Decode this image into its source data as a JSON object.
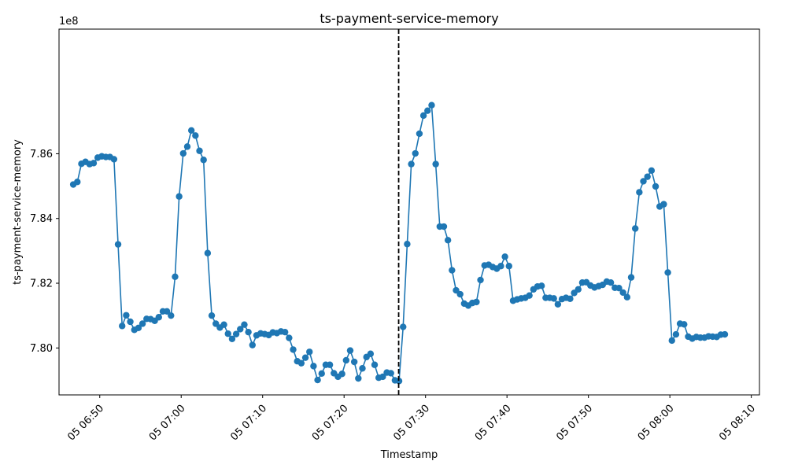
{
  "chart_data": {
    "type": "line",
    "title": "ts-payment-service-memory",
    "xlabel": "Timestamp",
    "ylabel": "ts-payment-service-memory",
    "y_offset_label": "1e8",
    "y_scale": 100000000,
    "xlim": [
      "05 06:45",
      "05 08:11"
    ],
    "ylim": [
      7.7855,
      7.8985
    ],
    "grid": false,
    "legend": "none",
    "line_color": "#1f77b4",
    "marker": "circle",
    "x_ticks": [
      {
        "minute": 50,
        "label": "05 06:50"
      },
      {
        "minute": 60,
        "label": "05 07:00"
      },
      {
        "minute": 70,
        "label": "05 07:10"
      },
      {
        "minute": 80,
        "label": "05 07:20"
      },
      {
        "minute": 90,
        "label": "05 07:30"
      },
      {
        "minute": 100,
        "label": "05 07:40"
      },
      {
        "minute": 110,
        "label": "05 07:50"
      },
      {
        "minute": 120,
        "label": "05 08:00"
      },
      {
        "minute": 130,
        "label": "05 08:10"
      }
    ],
    "y_ticks": [
      {
        "value": 7.8,
        "label": "7.80"
      },
      {
        "value": 7.82,
        "label": "7.82"
      },
      {
        "value": 7.84,
        "label": "7.84"
      },
      {
        "value": 7.86,
        "label": "7.86"
      }
    ],
    "vline": {
      "time": "05 07:26:42",
      "style": "dashed",
      "color": "#000000"
    },
    "series": [
      {
        "x": [
          "05 06:46:45",
          "05 06:47:15",
          "05 06:47:45",
          "05 06:48:15",
          "05 06:48:45",
          "05 06:49:15",
          "05 06:49:45",
          "05 06:50:15",
          "05 06:50:45",
          "05 06:51:15",
          "05 06:51:45",
          "05 06:52:15",
          "05 06:52:45",
          "05 06:53:15",
          "05 06:53:45",
          "05 06:54:15",
          "05 06:54:45",
          "05 06:55:15",
          "05 06:55:45",
          "05 06:56:15",
          "05 06:56:45",
          "05 06:57:15",
          "05 06:57:45",
          "05 06:58:15",
          "05 06:58:45",
          "05 06:59:15",
          "05 06:59:45",
          "05 07:00:15",
          "05 07:00:45",
          "05 07:01:15",
          "05 07:01:45",
          "05 07:02:15",
          "05 07:02:45",
          "05 07:03:15",
          "05 07:03:45",
          "05 07:04:15",
          "05 07:04:45",
          "05 07:05:15",
          "05 07:05:45",
          "05 07:06:15",
          "05 07:06:45",
          "05 07:07:15",
          "05 07:07:45",
          "05 07:08:15",
          "05 07:08:45",
          "05 07:09:15",
          "05 07:09:45",
          "05 07:10:15",
          "05 07:10:45",
          "05 07:11:15",
          "05 07:11:45",
          "05 07:12:15",
          "05 07:12:45",
          "05 07:13:15",
          "05 07:13:45",
          "05 07:14:15",
          "05 07:14:45",
          "05 07:15:15",
          "05 07:15:45",
          "05 07:16:15",
          "05 07:16:45",
          "05 07:17:15",
          "05 07:17:45",
          "05 07:18:15",
          "05 07:18:45",
          "05 07:19:15",
          "05 07:19:45",
          "05 07:20:15",
          "05 07:20:45",
          "05 07:21:15",
          "05 07:21:45",
          "05 07:22:15",
          "05 07:22:45",
          "05 07:23:15",
          "05 07:23:45",
          "05 07:24:15",
          "05 07:24:45",
          "05 07:25:15",
          "05 07:25:45",
          "05 07:26:15",
          "05 07:26:45",
          "05 07:27:15",
          "05 07:27:45",
          "05 07:28:15",
          "05 07:28:45",
          "05 07:29:15",
          "05 07:29:45",
          "05 07:30:15",
          "05 07:30:45",
          "05 07:31:15",
          "05 07:31:45",
          "05 07:32:15",
          "05 07:32:45",
          "05 07:33:15",
          "05 07:33:45",
          "05 07:34:15",
          "05 07:34:45",
          "05 07:35:15",
          "05 07:35:45",
          "05 07:36:15",
          "05 07:36:45",
          "05 07:37:15",
          "05 07:37:45",
          "05 07:38:15",
          "05 07:38:45",
          "05 07:39:15",
          "05 07:39:45",
          "05 07:40:15",
          "05 07:40:45",
          "05 07:41:15",
          "05 07:41:45",
          "05 07:42:15",
          "05 07:42:45",
          "05 07:43:15",
          "05 07:43:45",
          "05 07:44:15",
          "05 07:44:45",
          "05 07:45:15",
          "05 07:45:45",
          "05 07:46:15",
          "05 07:46:45",
          "05 07:47:15",
          "05 07:47:45",
          "05 07:48:15",
          "05 07:48:45",
          "05 07:49:15",
          "05 07:49:45",
          "05 07:50:15",
          "05 07:50:45",
          "05 07:51:15",
          "05 07:51:45",
          "05 07:52:15",
          "05 07:52:45",
          "05 07:53:15",
          "05 07:53:45",
          "05 07:54:15",
          "05 07:54:45",
          "05 07:55:15",
          "05 07:55:45",
          "05 07:56:15",
          "05 07:56:45",
          "05 07:57:15",
          "05 07:57:45",
          "05 07:58:15",
          "05 07:58:45",
          "05 07:59:15",
          "05 07:59:45",
          "05 08:00:15",
          "05 08:00:45",
          "05 08:01:15",
          "05 08:01:45",
          "05 08:02:15",
          "05 08:02:45",
          "05 08:03:15",
          "05 08:03:45",
          "05 08:04:15",
          "05 08:04:45",
          "05 08:05:15",
          "05 08:05:45",
          "05 08:06:15",
          "05 08:06:45"
        ],
        "values": [
          7.8505,
          7.8513,
          7.8569,
          7.8575,
          7.8568,
          7.8571,
          7.8588,
          7.8592,
          7.859,
          7.859,
          7.8583,
          7.832,
          7.8068,
          7.8101,
          7.8081,
          7.8056,
          7.8062,
          7.8075,
          7.809,
          7.8089,
          7.8084,
          7.8095,
          7.8113,
          7.8113,
          7.81,
          7.822,
          7.8468,
          7.8601,
          7.8622,
          7.8672,
          7.8656,
          7.8609,
          7.8581,
          7.8293,
          7.81,
          7.8075,
          7.8063,
          7.8072,
          7.8044,
          7.8028,
          7.8043,
          7.8058,
          7.8072,
          7.8049,
          7.8009,
          7.8039,
          7.8045,
          7.8043,
          7.804,
          7.8048,
          7.8046,
          7.8051,
          7.8049,
          7.8031,
          7.7995,
          7.7959,
          7.7953,
          7.797,
          7.7988,
          7.7944,
          7.7901,
          7.7921,
          7.7948,
          7.7948,
          7.7922,
          7.7911,
          7.792,
          7.7962,
          7.7992,
          7.7957,
          7.7906,
          7.7937,
          7.7972,
          7.7982,
          7.7948,
          7.7908,
          7.7911,
          7.7924,
          7.7922,
          7.79,
          7.7898,
          7.8065,
          7.8321,
          7.8568,
          7.8601,
          7.8662,
          7.8718,
          7.8733,
          7.875,
          7.8568,
          7.8375,
          7.8375,
          7.8333,
          7.824,
          7.8178,
          7.8166,
          7.8137,
          7.8131,
          7.8139,
          7.8142,
          7.821,
          7.8255,
          7.8257,
          7.825,
          7.8245,
          7.8253,
          7.8282,
          7.8253,
          7.8146,
          7.815,
          7.8153,
          7.8155,
          7.8162,
          7.8181,
          7.819,
          7.8192,
          7.8155,
          7.8155,
          7.8153,
          7.8135,
          7.8151,
          7.8155,
          7.8152,
          7.817,
          7.8181,
          7.8202,
          7.8203,
          7.8193,
          7.8187,
          7.8191,
          7.8195,
          7.8205,
          7.8202,
          7.8186,
          7.8185,
          7.8171,
          7.8157,
          7.8218,
          7.8369,
          7.8481,
          7.8515,
          7.8529,
          7.8548,
          7.8499,
          7.8437,
          7.8444,
          7.8233,
          7.8023,
          7.8042,
          7.8075,
          7.8073,
          7.8035,
          7.8029,
          7.8034,
          7.8032,
          7.8032,
          7.8036,
          7.8035,
          7.8034,
          7.8041,
          7.8042
        ]
      }
    ]
  }
}
